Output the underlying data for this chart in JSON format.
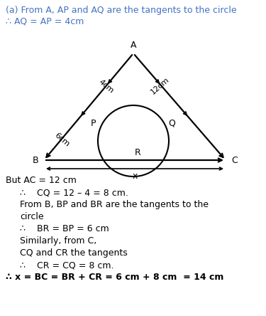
{
  "title_line1": "(a) From A, AP and AQ are the tangents to the circle",
  "title_line2": "∴ AQ = AP = 4cm",
  "title_color": "#4472c4",
  "body_lines": [
    "But AC = 12 cm",
    "∴    CQ = 12 – 4 = 8 cm.",
    "From B, BP and BR are the tangents to the",
    "circle",
    "∴    BR = BP = 6 cm",
    "Similarly, from C,",
    "CQ and CR the tangents",
    "∴    CR = CQ = 8 cm.",
    "∴ x = BC = BR + CR = 6 cm + 8 cm  = 14 cm"
  ],
  "bg_color": "#ffffff",
  "text_color": "#000000",
  "line_color": "#000000",
  "figsize": [
    3.75,
    4.44
  ],
  "dpi": 100
}
